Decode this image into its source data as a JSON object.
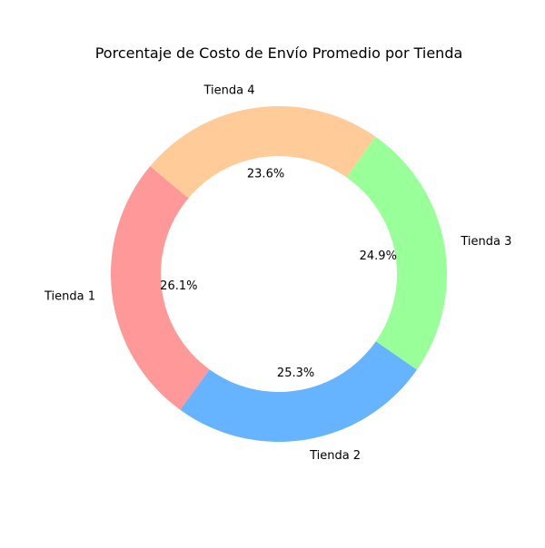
{
  "chart_data": {
    "type": "pie",
    "subtype": "donut",
    "title": "Porcentaje de Costo de Envío Promedio por Tienda",
    "categories": [
      "Tienda 1",
      "Tienda 2",
      "Tienda 3",
      "Tienda 4"
    ],
    "values": [
      26.1,
      25.3,
      24.9,
      23.6
    ],
    "value_labels": [
      "26.1%",
      "25.3%",
      "24.9%",
      "23.6%"
    ],
    "colors": [
      "#ff9999",
      "#66b3ff",
      "#99ff99",
      "#ffcc99"
    ],
    "start_angle_deg": 140,
    "direction": "counterclockwise",
    "legend": "none"
  }
}
